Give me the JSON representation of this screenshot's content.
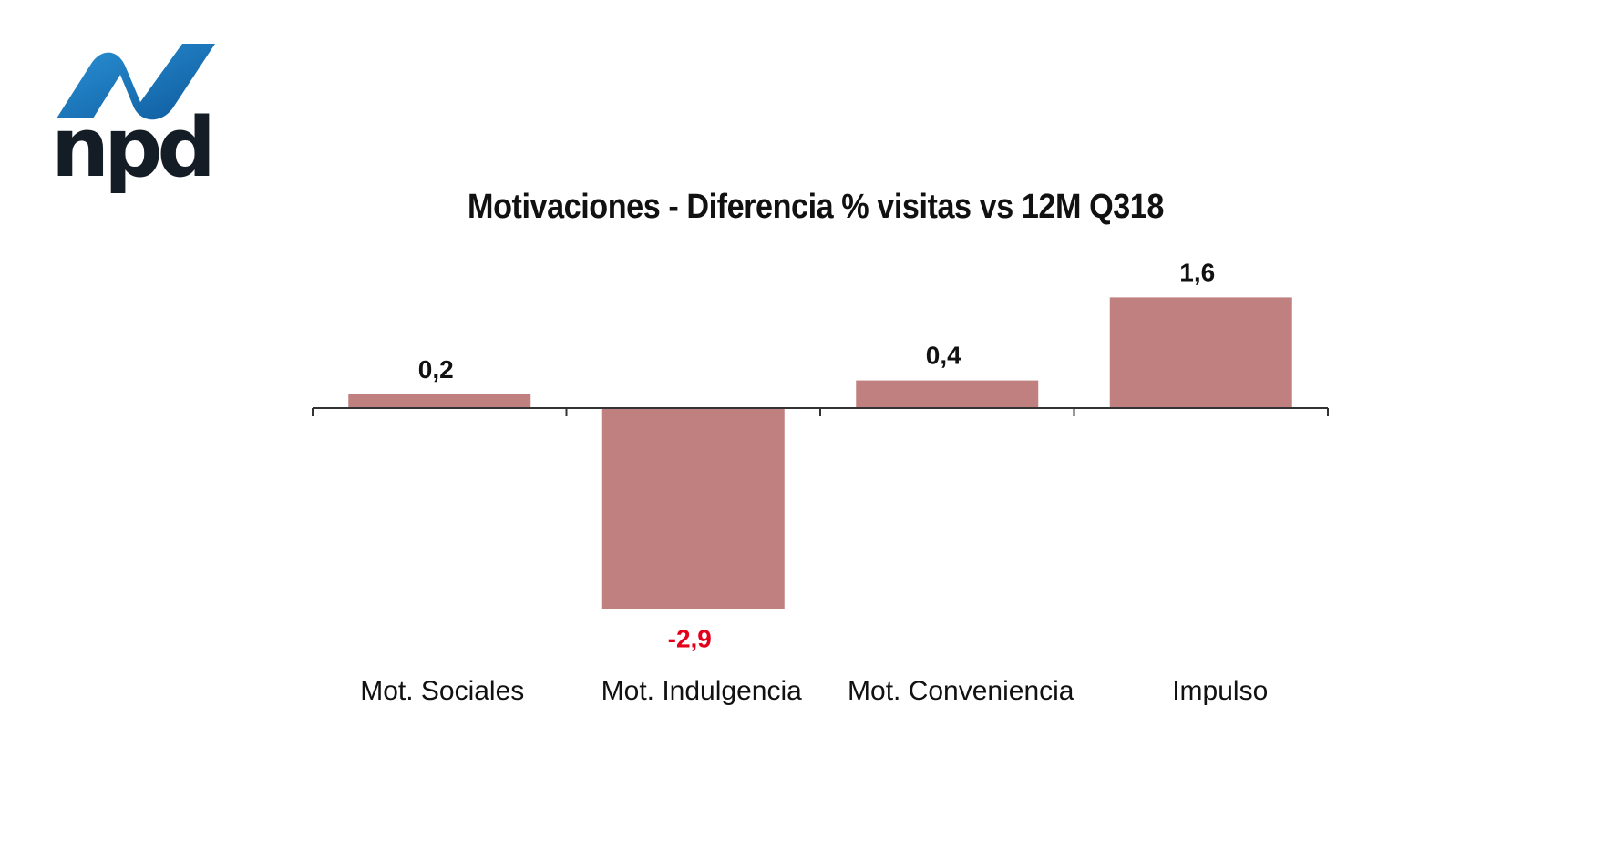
{
  "logo": {
    "text": "npd",
    "swoosh_color": "#1f7fc4",
    "text_color": "#141c26"
  },
  "chart_data": {
    "type": "bar",
    "title": "Motivaciones - Diferencia % visitas vs 12M Q318",
    "categories": [
      "Mot. Sociales",
      "Mot. Indulgencia",
      "Mot. Conveniencia",
      "Impulso"
    ],
    "values": [
      0.2,
      -2.9,
      0.4,
      1.6
    ],
    "value_labels": [
      "0,2",
      "-2,9",
      "0,4",
      "1,6"
    ],
    "xlabel": "",
    "ylabel": "",
    "ylim": [
      -2.9,
      1.6
    ],
    "grid": false,
    "legend": "none",
    "bar_color": "#c08080",
    "positive_label_color": "#111111",
    "negative_label_color": "#e3001b"
  }
}
